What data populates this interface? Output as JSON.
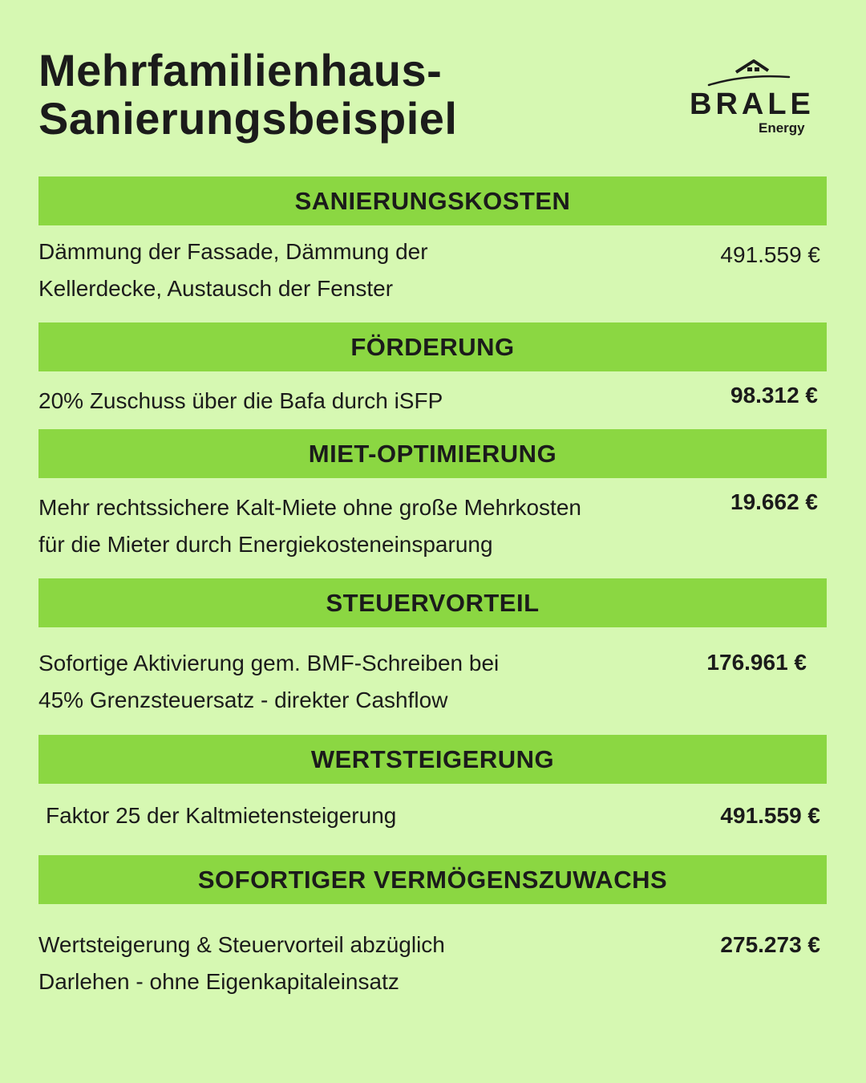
{
  "title": {
    "line1": "Mehrfamilienhaus-",
    "line2": "Sanierungsbeispiel"
  },
  "logo": {
    "brand": "BRALE",
    "sub": "Energy",
    "icon": "house-roof-icon"
  },
  "colors": {
    "background": "#d6f8b2",
    "band": "#8bd742",
    "text": "#1b1b1b"
  },
  "sections": [
    {
      "heading": "SANIERUNGSKOSTEN",
      "line1": "Dämmung der Fassade, Dämmung der",
      "line2": "Kellerdecke, Austausch der Fenster",
      "amount": "491.559 €"
    },
    {
      "heading": "FÖRDERUNG",
      "line1": "20% Zuschuss über die Bafa durch iSFP",
      "amount": "98.312 €"
    },
    {
      "heading": "MIET-OPTIMIERUNG",
      "line1": "Mehr rechtssichere Kalt-Miete ohne große Mehrkosten",
      "line2": "für die Mieter durch Energiekosteneinsparung",
      "amount": "19.662 €"
    },
    {
      "heading": "STEUERVORTEIL",
      "line1": "Sofortige Aktivierung gem. BMF-Schreiben bei",
      "line2": "45% Grenzsteuersatz - direkter Cashflow",
      "amount": "176.961 €"
    },
    {
      "heading": "WERTSTEIGERUNG",
      "line1": "Faktor 25 der Kaltmietensteigerung",
      "amount": "491.559 €"
    },
    {
      "heading": "SOFORTIGER VERMÖGENSZUWACHS",
      "line1": "Wertsteigerung & Steuervorteil abzüglich",
      "line2": "Darlehen - ohne Eigenkapitaleinsatz",
      "amount": "275.273 €"
    }
  ]
}
